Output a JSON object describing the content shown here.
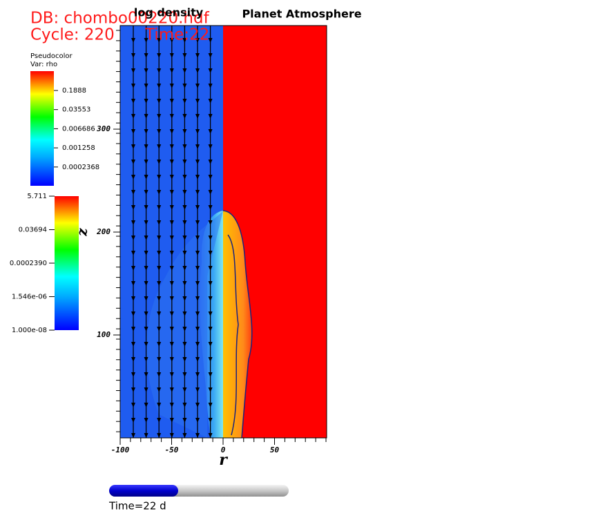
{
  "header": {
    "database": "DB: chombo00220.hdf",
    "cycle": "Cycle: 220",
    "time": "Time:22"
  },
  "titles": {
    "left": "log density",
    "right": "Planet Atmosphere"
  },
  "legend_top": {
    "title": "Pseudocolor",
    "variable": "Var: rho",
    "labels": [
      "0.1888",
      "0.03553",
      "0.006686",
      "0.001258",
      "0.0002368"
    ]
  },
  "legend_bottom": {
    "labels": [
      "5.711",
      "0.03694",
      "0.0002390",
      "1.546e-06",
      "1.000e-08"
    ]
  },
  "axes": {
    "x": {
      "label": "r",
      "ticks": [
        -100,
        -50,
        0,
        50
      ]
    },
    "y": {
      "label": "z",
      "ticks": [
        100,
        200,
        300
      ]
    }
  },
  "time_slider": {
    "label": "Time=22 d"
  }
}
